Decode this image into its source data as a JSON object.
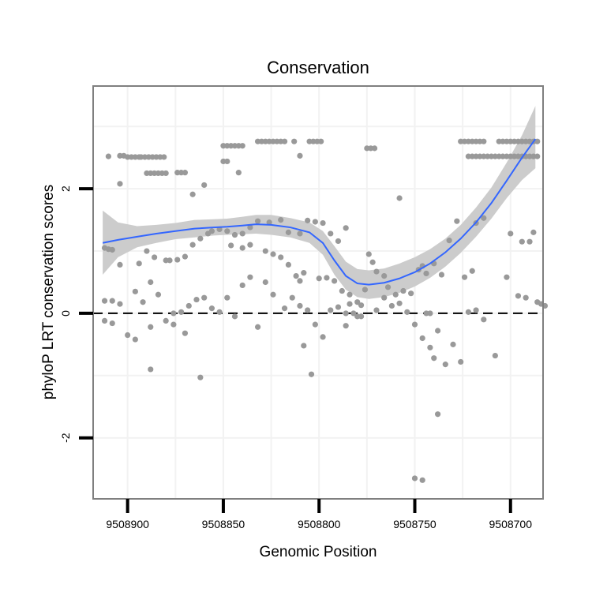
{
  "chart_data": {
    "type": "scatter",
    "title": "Conservation",
    "xlabel": "Genomic Position",
    "ylabel": "phyloP LRT conservation scores",
    "xlim": [
      9508918,
      9508683
    ],
    "x_reversed": true,
    "ylim": [
      -2.98,
      3.65
    ],
    "x_ticks": [
      9508900,
      9508850,
      9508800,
      9508750,
      9508700
    ],
    "x_tick_labels": [
      "9508900",
      "9508850",
      "9508800",
      "9508750",
      "9508700"
    ],
    "y_ticks": [
      -2,
      0,
      2
    ],
    "y_tick_labels": [
      "-2",
      "0",
      "2"
    ],
    "reference_line": {
      "y": 0,
      "style": "dashed"
    },
    "grid": true,
    "colors": {
      "points": "#999999",
      "smooth_line": "#3366ff",
      "confidence_band": "#cccccc",
      "frame": "#7f7f7f",
      "gridlines": "#f2f2f2"
    },
    "points": [
      [
        9508904,
        2.53
      ],
      [
        9508902,
        2.53
      ],
      [
        9508900,
        2.51
      ],
      [
        9508898,
        2.51
      ],
      [
        9508896,
        2.51
      ],
      [
        9508894,
        2.51
      ],
      [
        9508893,
        2.51
      ],
      [
        9508891,
        2.51
      ],
      [
        9508889,
        2.51
      ],
      [
        9508887,
        2.51
      ],
      [
        9508885,
        2.51
      ],
      [
        9508883,
        2.51
      ],
      [
        9508881,
        2.51
      ],
      [
        9508910,
        2.52
      ],
      [
        9508904,
        2.08
      ],
      [
        9508890,
        2.25
      ],
      [
        9508888,
        2.25
      ],
      [
        9508886,
        2.25
      ],
      [
        9508884,
        2.25
      ],
      [
        9508882,
        2.25
      ],
      [
        9508880,
        2.25
      ],
      [
        9508874,
        2.26
      ],
      [
        9508872,
        2.26
      ],
      [
        9508870,
        2.26
      ],
      [
        9508866,
        1.91
      ],
      [
        9508860,
        2.06
      ],
      [
        9508850,
        2.69
      ],
      [
        9508848,
        2.69
      ],
      [
        9508846,
        2.69
      ],
      [
        9508844,
        2.69
      ],
      [
        9508842,
        2.69
      ],
      [
        9508840,
        2.69
      ],
      [
        9508850,
        2.44
      ],
      [
        9508848,
        2.44
      ],
      [
        9508842,
        2.26
      ],
      [
        9508832,
        2.76
      ],
      [
        9508830,
        2.76
      ],
      [
        9508828,
        2.76
      ],
      [
        9508826,
        2.76
      ],
      [
        9508824,
        2.76
      ],
      [
        9508822,
        2.76
      ],
      [
        9508820,
        2.76
      ],
      [
        9508818,
        2.76
      ],
      [
        9508813,
        2.76
      ],
      [
        9508805,
        2.76
      ],
      [
        9508803,
        2.76
      ],
      [
        9508801,
        2.76
      ],
      [
        9508799,
        2.76
      ],
      [
        9508810,
        2.53
      ],
      [
        9508775,
        2.65
      ],
      [
        9508773,
        2.65
      ],
      [
        9508771,
        2.65
      ],
      [
        9508758,
        1.85
      ],
      [
        9508726,
        2.76
      ],
      [
        9508724,
        2.76
      ],
      [
        9508722,
        2.76
      ],
      [
        9508720,
        2.76
      ],
      [
        9508718,
        2.76
      ],
      [
        9508716,
        2.76
      ],
      [
        9508714,
        2.76
      ],
      [
        9508706,
        2.76
      ],
      [
        9508704,
        2.76
      ],
      [
        9508702,
        2.76
      ],
      [
        9508700,
        2.76
      ],
      [
        9508698,
        2.76
      ],
      [
        9508696,
        2.76
      ],
      [
        9508694,
        2.76
      ],
      [
        9508692,
        2.76
      ],
      [
        9508690,
        2.76
      ],
      [
        9508688,
        2.76
      ],
      [
        9508686,
        2.76
      ],
      [
        9508722,
        2.52
      ],
      [
        9508720,
        2.52
      ],
      [
        9508718,
        2.52
      ],
      [
        9508716,
        2.52
      ],
      [
        9508714,
        2.52
      ],
      [
        9508712,
        2.52
      ],
      [
        9508710,
        2.52
      ],
      [
        9508708,
        2.52
      ],
      [
        9508706,
        2.52
      ],
      [
        9508704,
        2.52
      ],
      [
        9508702,
        2.52
      ],
      [
        9508700,
        2.52
      ],
      [
        9508698,
        2.52
      ],
      [
        9508696,
        2.52
      ],
      [
        9508694,
        2.52
      ],
      [
        9508692,
        2.52
      ],
      [
        9508690,
        2.52
      ],
      [
        9508688,
        2.52
      ],
      [
        9508686,
        2.52
      ],
      [
        9508912,
        1.05
      ],
      [
        9508910,
        1.03
      ],
      [
        9508908,
        1.02
      ],
      [
        9508904,
        0.78
      ],
      [
        9508894,
        0.8
      ],
      [
        9508890,
        1.0
      ],
      [
        9508888,
        0.5
      ],
      [
        9508886,
        0.9
      ],
      [
        9508880,
        0.85
      ],
      [
        9508878,
        0.85
      ],
      [
        9508874,
        0.86
      ],
      [
        9508870,
        0.91
      ],
      [
        9508866,
        1.1
      ],
      [
        9508862,
        1.2
      ],
      [
        9508858,
        1.28
      ],
      [
        9508856,
        1.32
      ],
      [
        9508852,
        1.35
      ],
      [
        9508848,
        1.32
      ],
      [
        9508844,
        1.26
      ],
      [
        9508840,
        1.28
      ],
      [
        9508836,
        1.38
      ],
      [
        9508832,
        1.48
      ],
      [
        9508826,
        1.46
      ],
      [
        9508820,
        1.5
      ],
      [
        9508816,
        1.3
      ],
      [
        9508810,
        1.28
      ],
      [
        9508806,
        1.49
      ],
      [
        9508802,
        1.47
      ],
      [
        9508798,
        1.45
      ],
      [
        9508794,
        1.28
      ],
      [
        9508790,
        1.16
      ],
      [
        9508786,
        1.37
      ],
      [
        9508846,
        1.09
      ],
      [
        9508840,
        1.05
      ],
      [
        9508836,
        1.1
      ],
      [
        9508828,
        1.0
      ],
      [
        9508824,
        0.95
      ],
      [
        9508820,
        0.9
      ],
      [
        9508816,
        0.78
      ],
      [
        9508812,
        0.6
      ],
      [
        9508810,
        0.52
      ],
      [
        9508808,
        0.65
      ],
      [
        9508800,
        0.56
      ],
      [
        9508796,
        0.57
      ],
      [
        9508792,
        0.52
      ],
      [
        9508788,
        0.36
      ],
      [
        9508786,
        0.0
      ],
      [
        9508784,
        0.3
      ],
      [
        9508782,
        0.0
      ],
      [
        9508780,
        -0.05
      ],
      [
        9508778,
        0.13
      ],
      [
        9508776,
        0.38
      ],
      [
        9508774,
        0.95
      ],
      [
        9508772,
        0.82
      ],
      [
        9508770,
        0.67
      ],
      [
        9508766,
        0.6
      ],
      [
        9508764,
        0.42
      ],
      [
        9508760,
        0.3
      ],
      [
        9508756,
        0.36
      ],
      [
        9508752,
        0.32
      ],
      [
        9508748,
        0.7
      ],
      [
        9508746,
        0.76
      ],
      [
        9508744,
        0.64
      ],
      [
        9508740,
        0.8
      ],
      [
        9508736,
        0.62
      ],
      [
        9508732,
        1.17
      ],
      [
        9508728,
        1.48
      ],
      [
        9508724,
        0.58
      ],
      [
        9508720,
        0.68
      ],
      [
        9508718,
        1.45
      ],
      [
        9508714,
        1.53
      ],
      [
        9508912,
        0.2
      ],
      [
        9508908,
        0.2
      ],
      [
        9508904,
        0.15
      ],
      [
        9508900,
        -0.35
      ],
      [
        9508896,
        0.35
      ],
      [
        9508892,
        0.18
      ],
      [
        9508888,
        -0.22
      ],
      [
        9508884,
        0.3
      ],
      [
        9508880,
        -0.12
      ],
      [
        9508876,
        0.0
      ],
      [
        9508872,
        0.02
      ],
      [
        9508868,
        0.12
      ],
      [
        9508864,
        0.22
      ],
      [
        9508860,
        0.25
      ],
      [
        9508856,
        0.08
      ],
      [
        9508852,
        0.02
      ],
      [
        9508848,
        0.25
      ],
      [
        9508844,
        -0.05
      ],
      [
        9508840,
        0.45
      ],
      [
        9508836,
        0.58
      ],
      [
        9508832,
        -0.22
      ],
      [
        9508828,
        0.5
      ],
      [
        9508824,
        0.3
      ],
      [
        9508818,
        0.08
      ],
      [
        9508814,
        0.25
      ],
      [
        9508810,
        0.12
      ],
      [
        9508806,
        0.05
      ],
      [
        9508802,
        -0.18
      ],
      [
        9508798,
        -0.38
      ],
      [
        9508794,
        0.05
      ],
      [
        9508790,
        0.1
      ],
      [
        9508786,
        -0.2
      ],
      [
        9508784,
        0.15
      ],
      [
        9508780,
        0.18
      ],
      [
        9508778,
        -0.05
      ],
      [
        9508770,
        0.05
      ],
      [
        9508766,
        0.25
      ],
      [
        9508762,
        0.12
      ],
      [
        9508758,
        0.16
      ],
      [
        9508754,
        0.02
      ],
      [
        9508750,
        -0.18
      ],
      [
        9508746,
        -0.4
      ],
      [
        9508744,
        0.0
      ],
      [
        9508742,
        0.0
      ],
      [
        9508738,
        -0.28
      ],
      [
        9508734,
        -0.82
      ],
      [
        9508730,
        -0.5
      ],
      [
        9508726,
        -0.78
      ],
      [
        9508722,
        0.02
      ],
      [
        9508718,
        0.05
      ],
      [
        9508714,
        -0.1
      ],
      [
        9508912,
        -0.12
      ],
      [
        9508908,
        -0.16
      ],
      [
        9508896,
        -0.42
      ],
      [
        9508888,
        -0.9
      ],
      [
        9508876,
        -0.18
      ],
      [
        9508870,
        -0.32
      ],
      [
        9508862,
        -1.03
      ],
      [
        9508808,
        -0.52
      ],
      [
        9508804,
        -0.98
      ],
      [
        9508742,
        -0.55
      ],
      [
        9508740,
        -0.72
      ],
      [
        9508738,
        -1.62
      ],
      [
        9508750,
        -2.65
      ],
      [
        9508746,
        -2.68
      ],
      [
        9508700,
        1.28
      ],
      [
        9508696,
        0.28
      ],
      [
        9508692,
        0.25
      ],
      [
        9508688,
        1.3
      ],
      [
        9508684,
        0.15
      ],
      [
        9508708,
        -0.68
      ],
      [
        9508702,
        0.58
      ],
      [
        9508694,
        1.15
      ],
      [
        9508690,
        1.15
      ],
      [
        9508686,
        0.18
      ],
      [
        9508682,
        0.12
      ]
    ],
    "smooth": [
      [
        9508913,
        1.13
      ],
      [
        9508905,
        1.18
      ],
      [
        9508895,
        1.23
      ],
      [
        9508885,
        1.28
      ],
      [
        9508875,
        1.32
      ],
      [
        9508865,
        1.36
      ],
      [
        9508855,
        1.38
      ],
      [
        9508848,
        1.39
      ],
      [
        9508840,
        1.41
      ],
      [
        9508833,
        1.43
      ],
      [
        9508825,
        1.42
      ],
      [
        9508815,
        1.38
      ],
      [
        9508805,
        1.3
      ],
      [
        9508798,
        1.13
      ],
      [
        9508792,
        0.85
      ],
      [
        9508786,
        0.6
      ],
      [
        9508780,
        0.48
      ],
      [
        9508774,
        0.46
      ],
      [
        9508766,
        0.49
      ],
      [
        9508758,
        0.56
      ],
      [
        9508750,
        0.66
      ],
      [
        9508742,
        0.8
      ],
      [
        9508734,
        0.98
      ],
      [
        9508726,
        1.2
      ],
      [
        9508718,
        1.46
      ],
      [
        9508710,
        1.77
      ],
      [
        9508702,
        2.13
      ],
      [
        9508694,
        2.5
      ],
      [
        9508687,
        2.8
      ]
    ],
    "band_upper": [
      [
        9508913,
        1.65
      ],
      [
        9508905,
        1.46
      ],
      [
        9508895,
        1.4
      ],
      [
        9508885,
        1.42
      ],
      [
        9508875,
        1.45
      ],
      [
        9508865,
        1.5
      ],
      [
        9508855,
        1.51
      ],
      [
        9508848,
        1.52
      ],
      [
        9508840,
        1.55
      ],
      [
        9508833,
        1.58
      ],
      [
        9508825,
        1.58
      ],
      [
        9508815,
        1.53
      ],
      [
        9508805,
        1.46
      ],
      [
        9508798,
        1.32
      ],
      [
        9508792,
        1.08
      ],
      [
        9508786,
        0.83
      ],
      [
        9508780,
        0.71
      ],
      [
        9508774,
        0.69
      ],
      [
        9508766,
        0.72
      ],
      [
        9508758,
        0.8
      ],
      [
        9508750,
        0.9
      ],
      [
        9508742,
        1.03
      ],
      [
        9508734,
        1.2
      ],
      [
        9508726,
        1.42
      ],
      [
        9508718,
        1.7
      ],
      [
        9508710,
        2.02
      ],
      [
        9508702,
        2.42
      ],
      [
        9508694,
        2.86
      ],
      [
        9508687,
        3.33
      ]
    ],
    "band_lower": [
      [
        9508913,
        0.62
      ],
      [
        9508905,
        0.9
      ],
      [
        9508895,
        1.06
      ],
      [
        9508885,
        1.13
      ],
      [
        9508875,
        1.19
      ],
      [
        9508865,
        1.22
      ],
      [
        9508855,
        1.25
      ],
      [
        9508848,
        1.26
      ],
      [
        9508840,
        1.27
      ],
      [
        9508833,
        1.28
      ],
      [
        9508825,
        1.26
      ],
      [
        9508815,
        1.22
      ],
      [
        9508805,
        1.13
      ],
      [
        9508798,
        0.94
      ],
      [
        9508792,
        0.62
      ],
      [
        9508786,
        0.38
      ],
      [
        9508780,
        0.26
      ],
      [
        9508774,
        0.23
      ],
      [
        9508766,
        0.26
      ],
      [
        9508758,
        0.33
      ],
      [
        9508750,
        0.43
      ],
      [
        9508742,
        0.57
      ],
      [
        9508734,
        0.75
      ],
      [
        9508726,
        0.97
      ],
      [
        9508718,
        1.23
      ],
      [
        9508710,
        1.52
      ],
      [
        9508702,
        1.85
      ],
      [
        9508694,
        2.14
      ],
      [
        9508687,
        2.33
      ]
    ]
  }
}
